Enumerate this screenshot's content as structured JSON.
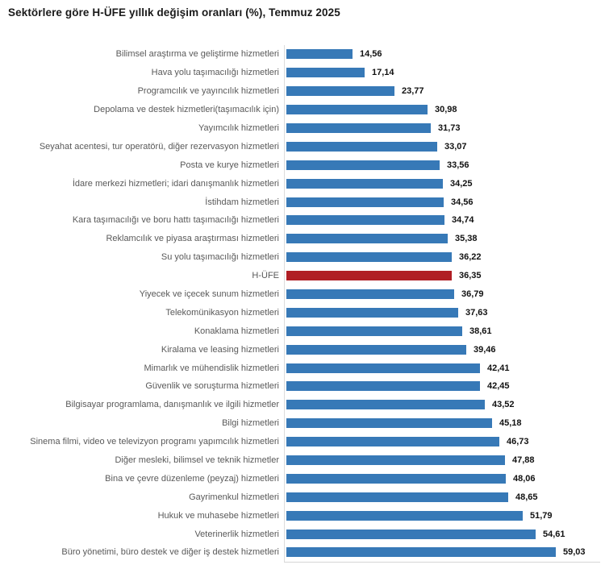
{
  "chart_data": {
    "type": "bar",
    "orientation": "horizontal",
    "title": "Sektörlere göre H-ÜFE yıllık değişim oranları (%), Temmuz 2025",
    "xlabel": "",
    "ylabel": "",
    "xlim": [
      0,
      62
    ],
    "grid": false,
    "legend": "none",
    "bar_color": "#3779b7",
    "highlight": {
      "category": "H-ÜFE",
      "color": "#b01e24"
    },
    "value_format": "comma-decimal",
    "categories": [
      "Bilimsel araştırma ve geliştirme hizmetleri",
      "Hava yolu taşımacılığı hizmetleri",
      "Programcılık ve yayıncılık hizmetleri",
      "Depolama ve destek hizmetleri(taşımacılık için)",
      "Yayımcılık hizmetleri",
      "Seyahat acentesi, tur operatörü, diğer rezervasyon hizmetleri",
      "Posta ve kurye hizmetleri",
      "İdare merkezi hizmetleri; idari danışmanlık hizmetleri",
      "İstihdam hizmetleri",
      "Kara taşımacılığı ve boru hattı taşımacılığı hizmetleri",
      "Reklamcılık ve piyasa araştırması hizmetleri",
      "Su yolu taşımacılığı hizmetleri",
      "H-ÜFE",
      "Yiyecek ve içecek sunum hizmetleri",
      "Telekomünikasyon hizmetleri",
      "Konaklama hizmetleri",
      "Kiralama ve leasing hizmetleri",
      "Mimarlık ve mühendislik hizmetleri",
      "Güvenlik ve soruşturma hizmetleri",
      "Bilgisayar programlama, danışmanlık ve ilgili hizmetler",
      "Bilgi hizmetleri",
      "Sinema filmi, video ve televizyon programı yapımcılık hizmetleri",
      "Diğer mesleki, bilimsel ve teknik hizmetler",
      "Bina ve çevre düzenleme (peyzaj) hizmetleri",
      "Gayrimenkul hizmetleri",
      "Hukuk ve muhasebe hizmetleri",
      "Veterinerlik hizmetleri",
      "Büro yönetimi, büro destek ve diğer iş destek hizmetleri"
    ],
    "values": [
      14.56,
      17.14,
      23.77,
      30.98,
      31.73,
      33.07,
      33.56,
      34.25,
      34.56,
      34.74,
      35.38,
      36.22,
      36.35,
      36.79,
      37.63,
      38.61,
      39.46,
      42.41,
      42.45,
      43.52,
      45.18,
      46.73,
      47.88,
      48.06,
      48.65,
      51.79,
      54.61,
      59.03
    ],
    "value_labels": [
      "14,56",
      "17,14",
      "23,77",
      "30,98",
      "31,73",
      "33,07",
      "33,56",
      "34,25",
      "34,56",
      "34,74",
      "35,38",
      "36,22",
      "36,35",
      "36,79",
      "37,63",
      "38,61",
      "39,46",
      "42,41",
      "42,45",
      "43,52",
      "45,18",
      "46,73",
      "47,88",
      "48,06",
      "48,65",
      "51,79",
      "54,61",
      "59,03"
    ]
  }
}
